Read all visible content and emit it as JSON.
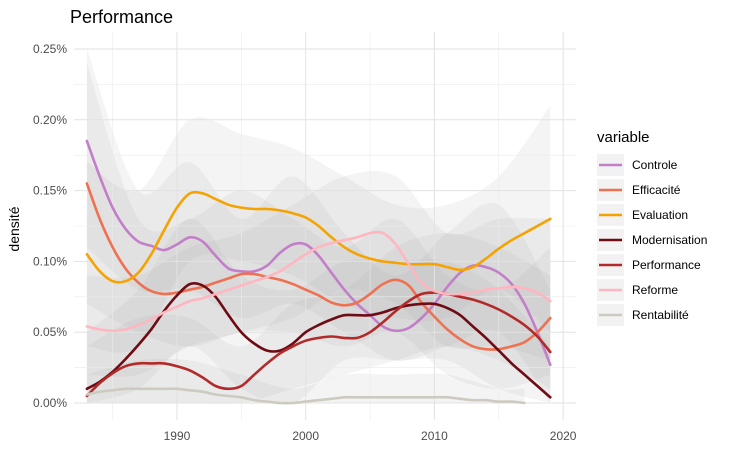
{
  "chart_data": {
    "type": "line",
    "title": "Performance",
    "xlabel": "",
    "ylabel": "densité",
    "xlim": [
      1982,
      2021
    ],
    "ylim": [
      -0.00012,
      0.00262
    ],
    "x_ticks": [
      1990,
      2000,
      2010,
      2020
    ],
    "y_ticks": [
      0,
      0.0005,
      0.001,
      0.0015,
      0.002,
      0.0025
    ],
    "y_tick_labels": [
      "0.00%",
      "0.05%",
      "0.10%",
      "0.15%",
      "0.20%",
      "0.25%"
    ],
    "grid": true,
    "legend_title": "variable",
    "legend_position": "right",
    "series": [
      {
        "name": "Controle",
        "color": "#c37ec9",
        "x": [
          1983,
          1984,
          1985,
          1986,
          1987,
          1988,
          1989,
          1990,
          1991,
          1992,
          1993,
          1994,
          1995,
          1996,
          1997,
          1998,
          1999,
          2000,
          2001,
          2002,
          2003,
          2004,
          2005,
          2006,
          2007,
          2008,
          2009,
          2010,
          2011,
          2012,
          2013,
          2014,
          2015,
          2016,
          2017,
          2018,
          2019
        ],
        "y": [
          0.00185,
          0.0016,
          0.00138,
          0.00123,
          0.00114,
          0.00111,
          0.00108,
          0.00112,
          0.00117,
          0.00114,
          0.00104,
          0.00095,
          0.00093,
          0.00093,
          0.00097,
          0.00106,
          0.00112,
          0.00112,
          0.00104,
          0.00092,
          0.0008,
          0.0007,
          0.00062,
          0.00054,
          0.00051,
          0.00053,
          0.0006,
          0.0007,
          0.00082,
          0.00092,
          0.00097,
          0.00096,
          0.00092,
          0.00084,
          0.0007,
          0.0005,
          0.00027
        ]
      },
      {
        "name": "Efficacité",
        "color": "#ee7152",
        "x": [
          1983,
          1984,
          1985,
          1986,
          1987,
          1988,
          1989,
          1990,
          1991,
          1992,
          1993,
          1994,
          1995,
          1996,
          1997,
          1998,
          1999,
          2000,
          2001,
          2002,
          2003,
          2004,
          2005,
          2006,
          2007,
          2008,
          2009,
          2010,
          2011,
          2012,
          2013,
          2014,
          2015,
          2016,
          2017,
          2018,
          2019
        ],
        "y": [
          0.00155,
          0.0013,
          0.0011,
          0.00095,
          0.00085,
          0.00079,
          0.00077,
          0.00078,
          0.0008,
          0.00082,
          0.00085,
          0.00088,
          0.00091,
          0.00091,
          0.00089,
          0.00087,
          0.00084,
          0.0008,
          0.00076,
          0.00071,
          0.00069,
          0.00071,
          0.00077,
          0.00084,
          0.00087,
          0.00083,
          0.00071,
          0.00061,
          0.00052,
          0.00045,
          0.0004,
          0.00038,
          0.00038,
          0.0004,
          0.00043,
          0.0005,
          0.0006
        ]
      },
      {
        "name": "Evaluation",
        "color": "#f4a300",
        "x": [
          1983,
          1984,
          1985,
          1986,
          1987,
          1988,
          1989,
          1990,
          1991,
          1992,
          1993,
          1994,
          1995,
          1996,
          1997,
          1998,
          1999,
          2000,
          2001,
          2002,
          2003,
          2004,
          2005,
          2006,
          2007,
          2008,
          2009,
          2010,
          2011,
          2012,
          2013,
          2014,
          2015,
          2016,
          2017,
          2018,
          2019
        ],
        "y": [
          0.00105,
          0.00093,
          0.00086,
          0.00086,
          0.00092,
          0.00105,
          0.00122,
          0.00138,
          0.00148,
          0.00148,
          0.00144,
          0.0014,
          0.00138,
          0.00137,
          0.00137,
          0.00136,
          0.00134,
          0.00131,
          0.00125,
          0.00117,
          0.0011,
          0.00105,
          0.00102,
          0.001,
          0.00099,
          0.00098,
          0.00098,
          0.00098,
          0.00096,
          0.00094,
          0.00096,
          0.00102,
          0.00109,
          0.00115,
          0.0012,
          0.00125,
          0.0013
        ]
      },
      {
        "name": "Modernisation",
        "color": "#6e0b14",
        "x": [
          1983,
          1984,
          1985,
          1986,
          1987,
          1988,
          1989,
          1990,
          1991,
          1992,
          1993,
          1994,
          1995,
          1996,
          1997,
          1998,
          1999,
          2000,
          2001,
          2002,
          2003,
          2004,
          2005,
          2006,
          2007,
          2008,
          2009,
          2010,
          2011,
          2012,
          2013,
          2014,
          2015,
          2016,
          2017,
          2018,
          2019
        ],
        "y": [
          0.0001,
          0.00015,
          0.00022,
          0.00031,
          0.00041,
          0.00052,
          0.00065,
          0.00076,
          0.00084,
          0.00083,
          0.00075,
          0.00062,
          0.0005,
          0.00042,
          0.00037,
          0.00037,
          0.00042,
          0.0005,
          0.00055,
          0.00059,
          0.00062,
          0.00062,
          0.00062,
          0.00064,
          0.00067,
          0.00069,
          0.0007,
          0.0007,
          0.00067,
          0.00062,
          0.00054,
          0.00046,
          0.00037,
          0.00028,
          0.0002,
          0.00012,
          4e-05
        ]
      },
      {
        "name": "Performance",
        "color": "#b22a2a",
        "x": [
          1983,
          1984,
          1985,
          1986,
          1987,
          1988,
          1989,
          1990,
          1991,
          1992,
          1993,
          1994,
          1995,
          1996,
          1997,
          1998,
          1999,
          2000,
          2001,
          2002,
          2003,
          2004,
          2005,
          2006,
          2007,
          2008,
          2009,
          2010,
          2011,
          2012,
          2013,
          2014,
          2015,
          2016,
          2017,
          2018,
          2019
        ],
        "y": [
          5e-05,
          0.00014,
          0.00021,
          0.00026,
          0.00028,
          0.00028,
          0.00028,
          0.00026,
          0.00023,
          0.00018,
          0.00012,
          0.0001,
          0.00012,
          0.0002,
          0.00028,
          0.00035,
          0.0004,
          0.00044,
          0.00046,
          0.00047,
          0.00046,
          0.00046,
          0.0005,
          0.00057,
          0.00065,
          0.00072,
          0.00077,
          0.00078,
          0.00077,
          0.00075,
          0.00073,
          0.0007,
          0.00066,
          0.00061,
          0.00055,
          0.00047,
          0.00036
        ]
      },
      {
        "name": "Reforme",
        "color": "#ffb6c1",
        "x": [
          1983,
          1984,
          1985,
          1986,
          1987,
          1988,
          1989,
          1990,
          1991,
          1992,
          1993,
          1994,
          1995,
          1996,
          1997,
          1998,
          1999,
          2000,
          2001,
          2002,
          2003,
          2004,
          2005,
          2006,
          2007,
          2008,
          2009,
          2010,
          2011,
          2012,
          2013,
          2014,
          2015,
          2016,
          2017,
          2018,
          2019
        ],
        "y": [
          0.00054,
          0.00052,
          0.00051,
          0.00052,
          0.00055,
          0.00059,
          0.00064,
          0.00068,
          0.00072,
          0.00074,
          0.00077,
          0.0008,
          0.00083,
          0.00086,
          0.00089,
          0.00093,
          0.00099,
          0.00105,
          0.0011,
          0.00113,
          0.00115,
          0.00117,
          0.0012,
          0.0012,
          0.00112,
          0.00098,
          0.00085,
          0.00079,
          0.00077,
          0.00077,
          0.00078,
          0.0008,
          0.00081,
          0.00082,
          0.00081,
          0.00078,
          0.00072
        ]
      },
      {
        "name": "Rentabilité",
        "color": "#cdcbc0",
        "x": [
          1983,
          1984,
          1985,
          1986,
          1987,
          1988,
          1989,
          1990,
          1991,
          1992,
          1993,
          1994,
          1995,
          1996,
          1997,
          1998,
          1999,
          2000,
          2001,
          2002,
          2003,
          2004,
          2005,
          2006,
          2007,
          2008,
          2009,
          2010,
          2011,
          2012,
          2013,
          2014,
          2015,
          2016,
          2017
        ],
        "y": [
          6e-05,
          8e-05,
          9e-05,
          0.0001,
          0.0001,
          0.0001,
          0.0001,
          0.0001,
          9e-05,
          8e-05,
          6e-05,
          5e-05,
          4e-05,
          2e-05,
          1e-05,
          0.0,
          0.0,
          1e-05,
          2e-05,
          3e-05,
          4e-05,
          4e-05,
          4e-05,
          4e-05,
          4e-05,
          4e-05,
          4e-05,
          4e-05,
          4e-05,
          3e-05,
          2e-05,
          2e-05,
          1e-05,
          1e-05,
          0.0
        ]
      }
    ],
    "confidence_bands": [
      {
        "name": "Controle",
        "x": [
          1983,
          1987,
          1991,
          1995,
          1999,
          2003,
          2007,
          2011,
          2015,
          2019
        ],
        "low": [
          0.0011,
          0.0008,
          0.0008,
          0.0006,
          0.0007,
          0.0005,
          0.0003,
          0.0004,
          0.0005,
          0.0
        ],
        "high": [
          0.0025,
          0.0015,
          0.0017,
          0.0013,
          0.0016,
          0.0012,
          0.0009,
          0.0012,
          0.0014,
          0.0008
        ]
      },
      {
        "name": "Efficacité",
        "x": [
          1983,
          1987,
          1991,
          1995,
          1999,
          2003,
          2007,
          2011,
          2015,
          2019
        ],
        "low": [
          0.0007,
          0.0005,
          0.0004,
          0.0005,
          0.0005,
          0.0004,
          0.0005,
          0.0002,
          0.0001,
          0.0002
        ],
        "high": [
          0.0024,
          0.0013,
          0.0013,
          0.0015,
          0.0013,
          0.0011,
          0.0013,
          0.0009,
          0.0008,
          0.0011
        ]
      },
      {
        "name": "Evaluation",
        "x": [
          1983,
          1987,
          1991,
          1995,
          1999,
          2003,
          2007,
          2011,
          2015,
          2019
        ],
        "low": [
          0.0004,
          0.0004,
          0.001,
          0.001,
          0.0009,
          0.0007,
          0.0006,
          0.0006,
          0.0008,
          0.0005
        ],
        "high": [
          0.0017,
          0.0015,
          0.002,
          0.0019,
          0.0018,
          0.0016,
          0.0014,
          0.0014,
          0.0016,
          0.0021
        ]
      },
      {
        "name": "Modernisation",
        "x": [
          1983,
          1987,
          1991,
          1995,
          1999,
          2003,
          2007,
          2011,
          2015,
          2019
        ],
        "low": [
          0.0,
          0.0001,
          0.0004,
          0.0001,
          0.0,
          0.0003,
          0.0003,
          0.0003,
          0.0001,
          0.0
        ],
        "high": [
          0.0005,
          0.0008,
          0.0013,
          0.0009,
          0.0008,
          0.001,
          0.001,
          0.001,
          0.0008,
          0.0004
        ]
      },
      {
        "name": "Performance",
        "x": [
          1983,
          1987,
          1991,
          1995,
          1999,
          2003,
          2007,
          2011,
          2015,
          2019
        ],
        "low": [
          0.0,
          0.0,
          0.0,
          0.0,
          0.0001,
          0.0002,
          0.0003,
          0.0004,
          0.0003,
          0.0001
        ],
        "high": [
          0.0004,
          0.0006,
          0.0006,
          0.0004,
          0.0007,
          0.0008,
          0.0011,
          0.0012,
          0.0011,
          0.0009
        ]
      },
      {
        "name": "Reforme",
        "x": [
          1983,
          1987,
          1991,
          1995,
          1999,
          2003,
          2007,
          2011,
          2015,
          2019
        ],
        "low": [
          0.0002,
          0.0002,
          0.0004,
          0.0005,
          0.0006,
          0.0008,
          0.0007,
          0.0004,
          0.0004,
          0.0003
        ],
        "high": [
          0.0009,
          0.0009,
          0.0011,
          0.0012,
          0.0014,
          0.0016,
          0.0016,
          0.0012,
          0.0013,
          0.0013
        ]
      },
      {
        "name": "Rentabilité",
        "x": [
          1983,
          1987,
          1991,
          1995,
          1999,
          2003,
          2007,
          2011,
          2015,
          2017
        ],
        "low": [
          0.0,
          0.0,
          0.0,
          0.0,
          0.0,
          0.0,
          0.0,
          0.0,
          0.0,
          0.0
        ],
        "high": [
          0.0002,
          0.0003,
          0.0003,
          0.0002,
          0.0001,
          0.0002,
          0.0002,
          0.0002,
          0.0001,
          0.0001
        ]
      }
    ]
  }
}
